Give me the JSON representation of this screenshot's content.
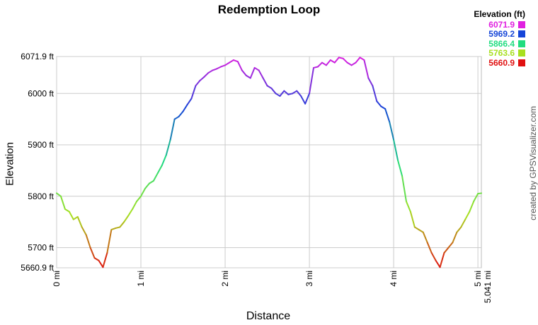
{
  "chart_data": {
    "type": "area",
    "title": "Redemption Loop",
    "xlabel": "Distance",
    "ylabel": "Elevation",
    "credit": "created by GPSVisualizer.com",
    "xlim": [
      0,
      5.041
    ],
    "ylim": [
      5660.9,
      6071.9
    ],
    "x_unit": "mi",
    "y_unit": "ft",
    "grid": true,
    "x_ticks": [
      {
        "value": 0,
        "label": "0 mi"
      },
      {
        "value": 1,
        "label": "1 mi"
      },
      {
        "value": 2,
        "label": "2 mi"
      },
      {
        "value": 3,
        "label": "3 mi"
      },
      {
        "value": 4,
        "label": "4 mi"
      },
      {
        "value": 5,
        "label": "5 mi"
      },
      {
        "value": 5.041,
        "label": "5.041 mi"
      }
    ],
    "y_ticks": [
      {
        "value": 5660.9,
        "label": "5660.9 ft"
      },
      {
        "value": 5700,
        "label": "5700 ft"
      },
      {
        "value": 5800,
        "label": "5800 ft"
      },
      {
        "value": 5900,
        "label": "5900 ft"
      },
      {
        "value": 6000,
        "label": "6000 ft"
      },
      {
        "value": 6071.9,
        "label": "6071.9 ft"
      }
    ],
    "legend": {
      "title": "Elevation (ft)",
      "position": "top-right",
      "items": [
        {
          "label": "6071.9",
          "color": "#e020e0"
        },
        {
          "label": "5969.2",
          "color": "#1545d8"
        },
        {
          "label": "5866.4",
          "color": "#20dd80"
        },
        {
          "label": "5763.6",
          "color": "#a8e020"
        },
        {
          "label": "5660.9",
          "color": "#e01010"
        }
      ]
    },
    "series": [
      {
        "x": [
          0.0,
          0.05,
          0.1,
          0.15,
          0.2,
          0.25,
          0.3,
          0.35,
          0.4,
          0.45,
          0.5,
          0.55,
          0.6,
          0.65,
          0.7,
          0.75,
          0.8,
          0.85,
          0.9,
          0.95,
          1.0,
          1.05,
          1.1,
          1.15,
          1.2,
          1.25,
          1.3,
          1.35,
          1.4,
          1.45,
          1.5,
          1.55,
          1.6,
          1.65,
          1.7,
          1.75,
          1.8,
          1.85,
          1.9,
          1.95,
          2.0,
          2.05,
          2.1,
          2.15,
          2.2,
          2.25,
          2.3,
          2.35,
          2.4,
          2.45,
          2.5,
          2.55,
          2.6,
          2.65,
          2.7,
          2.75,
          2.8,
          2.85,
          2.9,
          2.95,
          3.0,
          3.05,
          3.1,
          3.15,
          3.2,
          3.25,
          3.3,
          3.35,
          3.4,
          3.45,
          3.5,
          3.55,
          3.6,
          3.65,
          3.7,
          3.75,
          3.8,
          3.85,
          3.9,
          3.95,
          4.0,
          4.05,
          4.1,
          4.15,
          4.2,
          4.25,
          4.3,
          4.35,
          4.4,
          4.45,
          4.5,
          4.55,
          4.6,
          4.65,
          4.7,
          4.75,
          4.8,
          4.85,
          4.9,
          4.95,
          5.0,
          5.041
        ],
        "y": [
          5806,
          5800,
          5775,
          5770,
          5755,
          5760,
          5740,
          5725,
          5700,
          5680,
          5675,
          5662,
          5690,
          5735,
          5738,
          5740,
          5750,
          5762,
          5775,
          5790,
          5800,
          5815,
          5825,
          5830,
          5845,
          5860,
          5880,
          5910,
          5950,
          5955,
          5965,
          5978,
          5990,
          6015,
          6025,
          6032,
          6040,
          6045,
          6048,
          6052,
          6055,
          6060,
          6065,
          6062,
          6045,
          6035,
          6030,
          6050,
          6045,
          6030,
          6015,
          6010,
          6000,
          5995,
          6005,
          5998,
          6000,
          6005,
          5995,
          5980,
          6000,
          6050,
          6052,
          6060,
          6055,
          6065,
          6060,
          6070,
          6068,
          6060,
          6055,
          6060,
          6070,
          6065,
          6030,
          6015,
          5985,
          5975,
          5970,
          5945,
          5910,
          5870,
          5840,
          5790,
          5770,
          5740,
          5735,
          5730,
          5710,
          5690,
          5675,
          5662,
          5690,
          5700,
          5710,
          5730,
          5740,
          5755,
          5770,
          5790,
          5805,
          5806
        ]
      }
    ]
  }
}
